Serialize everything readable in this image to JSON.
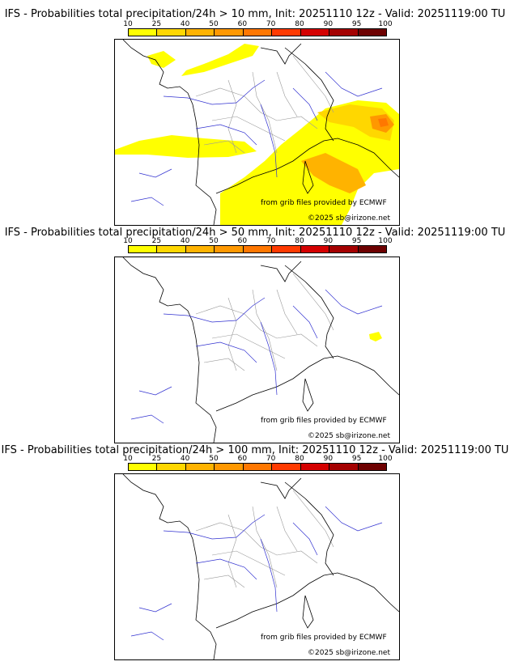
{
  "colorbar": {
    "ticks": [
      "10",
      "25",
      "40",
      "50",
      "60",
      "70",
      "80",
      "90",
      "95",
      "100"
    ],
    "colors": [
      "#ffff00",
      "#ffd700",
      "#ffb300",
      "#ff9800",
      "#ff7700",
      "#ff3a00",
      "#d40000",
      "#a40000",
      "#6d0000"
    ]
  },
  "panels": [
    {
      "title": "IFS - Probabilities total precipitation/24h > 10 mm, Init: 20251110 12z - Valid: 20251119:00 TU",
      "threshold": "10 mm"
    },
    {
      "title": "IFS - Probabilities total precipitation/24h > 50 mm, Init: 20251110 12z - Valid: 20251119:00 TU",
      "threshold": "50 mm"
    },
    {
      "title": "IFS - Probabilities total precipitation/24h > 100 mm, Init: 20251110 12z - Valid: 20251119:00 TU",
      "threshold": "100 mm"
    }
  ],
  "credits": {
    "source": "from grib files provided by ECMWF",
    "copyright": "©2025 sb@irizone.net"
  }
}
